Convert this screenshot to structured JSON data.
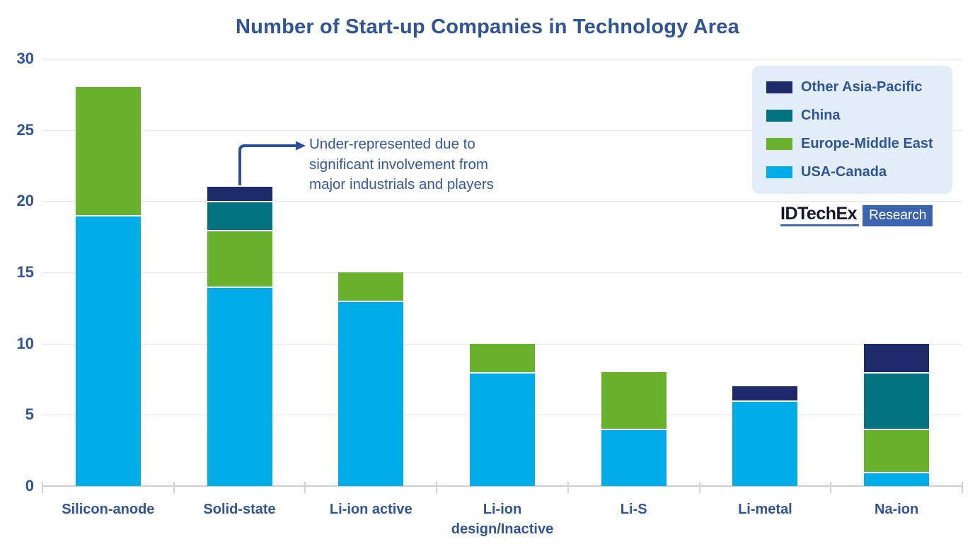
{
  "chart_data": {
    "type": "bar",
    "stacked": true,
    "title": "Number of Start-up Companies in Technology Area",
    "categories": [
      "Silicon-anode",
      "Solid-state",
      "Li-ion active",
      "Li-ion design/Inactive",
      "Li-S",
      "Li-metal",
      "Na-ion"
    ],
    "series": [
      {
        "name": "USA-Canada",
        "color": "#00ADE9",
        "values": [
          19,
          14,
          13,
          8,
          4,
          6,
          1
        ]
      },
      {
        "name": "Europe-Middle East",
        "color": "#69B22E",
        "values": [
          9,
          4,
          2,
          2,
          4,
          0,
          3
        ]
      },
      {
        "name": "China",
        "color": "#03737F",
        "values": [
          0,
          2,
          0,
          0,
          0,
          0,
          4
        ]
      },
      {
        "name": "Other Asia-Pacific",
        "color": "#1C2A6A",
        "values": [
          0,
          1,
          0,
          0,
          0,
          1,
          2
        ]
      }
    ],
    "totals": [
      28,
      21,
      15,
      10,
      8,
      7,
      10
    ],
    "ylim": [
      0,
      30
    ],
    "yticks": [
      0,
      5,
      10,
      15,
      20,
      25,
      30
    ],
    "grid": true,
    "legend_position": "top-right"
  },
  "legend": {
    "items": [
      {
        "label": "Other Asia-Pacific",
        "color": "#1C2A6A"
      },
      {
        "label": "China",
        "color": "#03737F"
      },
      {
        "label": "Europe-Middle East",
        "color": "#69B22E"
      },
      {
        "label": "USA-Canada",
        "color": "#00ADE9"
      }
    ]
  },
  "annotation": {
    "lines": [
      "Under-represented due to",
      "significant involvement from",
      "major industrials and players"
    ],
    "target_category": "Solid-state"
  },
  "branding": {
    "name": "IDTechEx",
    "suffix": "Research"
  },
  "theme": {
    "text_blue": "#2F5597",
    "arrow_blue": "#2B4F9B",
    "legend_bg": "#E3EDF8"
  }
}
